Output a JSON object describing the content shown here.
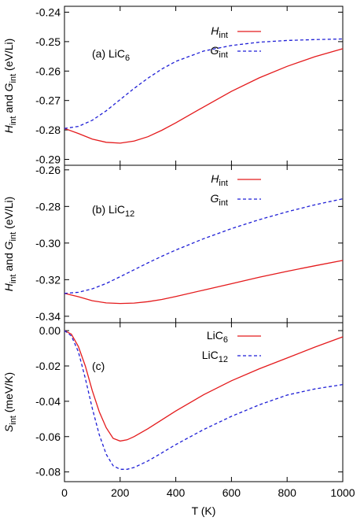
{
  "chart_data": [
    {
      "id": "a",
      "type": "line",
      "panel_label": {
        "prefix": "(a) LiC",
        "sub": "6"
      },
      "ylabel": {
        "parts": [
          {
            "t": "H",
            "i": true
          },
          {
            "t": "int",
            "sub": true
          },
          {
            "t": " and "
          },
          {
            "t": "G",
            "i": true
          },
          {
            "t": "int",
            "sub": true
          },
          {
            "t": " (eV/Li)"
          }
        ]
      },
      "xlim": [
        0,
        1000
      ],
      "ylim": [
        -0.292,
        -0.238
      ],
      "yticks": [
        -0.29,
        -0.28,
        -0.27,
        -0.26,
        -0.25,
        -0.24
      ],
      "ytick_labels": [
        "-0.29",
        "-0.28",
        "-0.27",
        "-0.26",
        "-0.25",
        "-0.24"
      ],
      "legend_position": "top-right",
      "series": [
        {
          "name": "H",
          "sub": "int",
          "color": "#e41a1c",
          "dash": "solid",
          "x": [
            0,
            50,
            100,
            150,
            200,
            250,
            300,
            350,
            400,
            500,
            600,
            700,
            800,
            900,
            1000
          ],
          "y": [
            -0.2795,
            -0.2812,
            -0.2831,
            -0.2842,
            -0.2845,
            -0.2838,
            -0.2823,
            -0.2801,
            -0.2776,
            -0.2722,
            -0.2669,
            -0.2623,
            -0.2584,
            -0.2551,
            -0.2524
          ]
        },
        {
          "name": "G",
          "sub": "int",
          "color": "#1f1fd6",
          "dash": "dashed",
          "x": [
            0,
            50,
            100,
            150,
            200,
            250,
            300,
            350,
            400,
            500,
            600,
            700,
            800,
            900,
            1000
          ],
          "y": [
            -0.2795,
            -0.2788,
            -0.2767,
            -0.2735,
            -0.2697,
            -0.2659,
            -0.2624,
            -0.2593,
            -0.2567,
            -0.2532,
            -0.2513,
            -0.2502,
            -0.2496,
            -0.2493,
            -0.2491
          ]
        }
      ]
    },
    {
      "id": "b",
      "type": "line",
      "panel_label": {
        "prefix": "(b) LiC",
        "sub": "12"
      },
      "ylabel": {
        "parts": [
          {
            "t": "H",
            "i": true
          },
          {
            "t": "int",
            "sub": true
          },
          {
            "t": " and "
          },
          {
            "t": "G",
            "i": true
          },
          {
            "t": "int",
            "sub": true
          },
          {
            "t": " (eV/Li)"
          }
        ]
      },
      "xlim": [
        0,
        1000
      ],
      "ylim": [
        -0.3435,
        -0.2575
      ],
      "yticks": [
        -0.34,
        -0.32,
        -0.3,
        -0.28,
        -0.26
      ],
      "ytick_labels": [
        "-0.34",
        "-0.32",
        "-0.30",
        "-0.28",
        "-0.26"
      ],
      "legend_position": "top-right",
      "series": [
        {
          "name": "H",
          "sub": "int",
          "color": "#e41a1c",
          "dash": "solid",
          "x": [
            0,
            50,
            100,
            150,
            200,
            250,
            300,
            350,
            400,
            500,
            600,
            700,
            800,
            900,
            1000
          ],
          "y": [
            -0.3275,
            -0.3293,
            -0.3315,
            -0.3327,
            -0.333,
            -0.3328,
            -0.332,
            -0.3308,
            -0.3292,
            -0.3257,
            -0.3222,
            -0.3187,
            -0.3154,
            -0.3124,
            -0.3095
          ]
        },
        {
          "name": "G",
          "sub": "int",
          "color": "#1f1fd6",
          "dash": "dashed",
          "x": [
            0,
            50,
            100,
            150,
            200,
            250,
            300,
            350,
            400,
            500,
            600,
            700,
            800,
            900,
            1000
          ],
          "y": [
            -0.3275,
            -0.3269,
            -0.325,
            -0.3221,
            -0.3184,
            -0.3146,
            -0.3108,
            -0.3072,
            -0.3038,
            -0.2976,
            -0.2921,
            -0.2872,
            -0.2829,
            -0.2791,
            -0.2758
          ]
        }
      ]
    },
    {
      "id": "c",
      "type": "line",
      "panel_label": {
        "prefix": "(c)",
        "sub": ""
      },
      "ylabel": {
        "parts": [
          {
            "t": "S",
            "i": true
          },
          {
            "t": "int",
            "sub": true
          },
          {
            "t": " (meV/K)"
          }
        ]
      },
      "xlabel": "T (K)",
      "xlim": [
        0,
        1000
      ],
      "ylim": [
        -0.0855,
        0.0045
      ],
      "xticks": [
        0,
        200,
        400,
        600,
        800,
        1000
      ],
      "xtick_labels": [
        "0",
        "200",
        "400",
        "600",
        "800",
        "1000"
      ],
      "yticks": [
        -0.08,
        -0.06,
        -0.04,
        -0.02,
        0.0
      ],
      "ytick_labels": [
        "-0.08",
        "-0.06",
        "-0.04",
        "-0.02",
        "0.00"
      ],
      "legend_position": "top-right",
      "series": [
        {
          "name": "LiC",
          "sub": "6",
          "color": "#e41a1c",
          "dash": "solid",
          "x": [
            0,
            25,
            50,
            75,
            100,
            125,
            150,
            175,
            200,
            225,
            250,
            300,
            350,
            400,
            500,
            600,
            700,
            800,
            900,
            1000
          ],
          "y": [
            0,
            -0.002,
            -0.009,
            -0.02,
            -0.034,
            -0.046,
            -0.055,
            -0.061,
            -0.0625,
            -0.0618,
            -0.06,
            -0.0555,
            -0.0505,
            -0.0455,
            -0.0363,
            -0.0284,
            -0.0216,
            -0.0155,
            -0.0093,
            -0.0035
          ]
        },
        {
          "name": "LiC",
          "sub": "12",
          "color": "#1f1fd6",
          "dash": "dashed",
          "x": [
            0,
            25,
            50,
            75,
            100,
            125,
            150,
            175,
            200,
            225,
            250,
            300,
            350,
            400,
            500,
            600,
            700,
            800,
            900,
            1000
          ],
          "y": [
            0,
            -0.003,
            -0.012,
            -0.027,
            -0.044,
            -0.059,
            -0.07,
            -0.0765,
            -0.0785,
            -0.0785,
            -0.0775,
            -0.0738,
            -0.0692,
            -0.0645,
            -0.056,
            -0.0485,
            -0.042,
            -0.0365,
            -0.033,
            -0.0305
          ]
        }
      ]
    }
  ]
}
